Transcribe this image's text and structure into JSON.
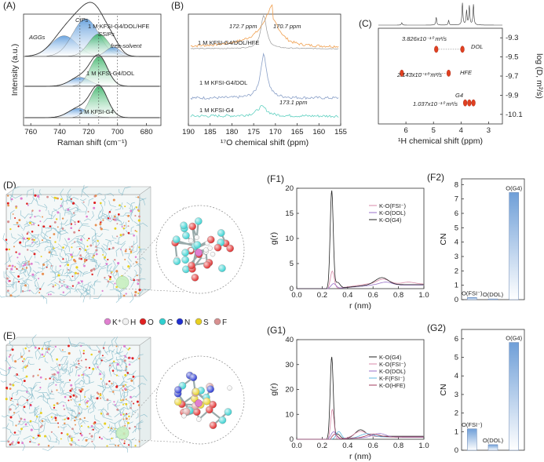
{
  "chart_data": [
    {
      "panel": "(A)",
      "type": "area",
      "xlabel": "Raman shift (cm⁻¹)",
      "ylabel": "Intensity (a.u.)",
      "xlim": [
        765,
        670
      ],
      "xticks": [
        760,
        740,
        720,
        700,
        680
      ],
      "series": [
        {
          "name": "1 M KFSI-G4/DOL/HFE",
          "components": [
            {
              "name": "AGGs",
              "center": 737,
              "height": 0.55,
              "width": 9
            },
            {
              "name": "CIPs",
              "center": 722,
              "height": 1.0,
              "width": 9
            },
            {
              "name": "SSIPs",
              "center": 713,
              "height": 0.6,
              "width": 7
            },
            {
              "name": "free-solvent",
              "center": 703,
              "height": 0.25,
              "width": 5
            }
          ]
        },
        {
          "name": "1 M KFSI-G4/DOL",
          "components": [
            {
              "name": "CIPs",
              "center": 726,
              "height": 0.3,
              "width": 7
            },
            {
              "name": "SSIPs",
              "center": 713,
              "height": 1.0,
              "width": 6
            }
          ]
        },
        {
          "name": "1 M KFSI-G4",
          "components": [
            {
              "name": "CIPs",
              "center": 727,
              "height": 0.3,
              "width": 7
            },
            {
              "name": "SSIPs",
              "center": 713,
              "height": 1.0,
              "width": 6
            }
          ]
        }
      ],
      "annotations": [
        "AGGs",
        "CIPs",
        "SSIPs",
        "free-solvent"
      ]
    },
    {
      "panel": "(B)",
      "type": "line",
      "xlabel": "¹⁷O chemical shift (ppm)",
      "xlim": [
        190,
        155
      ],
      "xticks": [
        190,
        185,
        180,
        175,
        170,
        165,
        160,
        155
      ],
      "series": [
        {
          "name": "1 M KFSI-G4/DOL/HFE",
          "peaks": [
            172.7,
            170.7
          ]
        },
        {
          "name": "1 M KFSI-G4/DOL",
          "peaks": [
            172.7
          ]
        },
        {
          "name": "1 M KFSI-G4",
          "peaks": [
            173.1
          ]
        }
      ],
      "annotations": [
        "172.7 ppm",
        "170.7 ppm",
        "173.1 ppm"
      ]
    },
    {
      "panel": "(C)",
      "type": "scatter",
      "xlabel": "¹H chemical shift (ppm)",
      "ylabel": "log (D, m²/s)",
      "xlim": [
        7,
        2.5
      ],
      "xticks": [
        6,
        5,
        4,
        3
      ],
      "ylim": [
        -9.2,
        -10.2
      ],
      "yticks": [
        "-9.3",
        "-9.5",
        "-9.7",
        "-9.9",
        "-10.1"
      ],
      "points": [
        {
          "name": "DOL",
          "diffusion": "3.826x10⁻¹⁰ m²/s",
          "shifts": [
            4.9,
            3.95
          ],
          "logD": -9.42
        },
        {
          "name": "HFE",
          "diffusion": "2.143x10⁻¹⁰ m²/s",
          "shifts": [
            6.15,
            4.45
          ],
          "logD": -9.67
        },
        {
          "name": "G4",
          "diffusion": "1.037x10⁻¹⁰ m²/s",
          "shifts": [
            3.85,
            3.7,
            3.55
          ],
          "logD": -9.98
        }
      ]
    },
    {
      "panel": "(F1)",
      "type": "line",
      "xlabel": "r (nm)",
      "ylabel": "g(r)",
      "xlim": [
        0.0,
        1.0
      ],
      "ylim": [
        0,
        20
      ],
      "xticks": [
        "0.0",
        "0.2",
        "0.4",
        "0.6",
        "0.8",
        "1.0"
      ],
      "yticks": [
        "0",
        "5",
        "10",
        "15",
        "20"
      ],
      "series": [
        {
          "name": "K-O(FSI⁻)",
          "color": "#d98aa8"
        },
        {
          "name": "K-O(DOL)",
          "color": "#9a72c8"
        },
        {
          "name": "K-O(G4)",
          "color": "#222222"
        }
      ]
    },
    {
      "panel": "(F2)",
      "type": "bar",
      "ylabel": "CN",
      "ylim": [
        0,
        8.4
      ],
      "yticks": [
        "0",
        "1",
        "2",
        "3",
        "4",
        "5",
        "6",
        "7",
        "8"
      ],
      "categories": [
        "O(FSI⁻)",
        "O(DOL)",
        "O(G4)"
      ],
      "values": [
        0.15,
        0.05,
        7.45
      ]
    },
    {
      "panel": "(G1)",
      "type": "line",
      "xlabel": "r (nm)",
      "ylabel": "g(r)",
      "xlim": [
        0.0,
        1.0
      ],
      "ylim": [
        0,
        40
      ],
      "xticks": [
        "0.0",
        "0.2",
        "0.4",
        "0.6",
        "0.8",
        "1.0"
      ],
      "yticks": [
        "0",
        "10",
        "20",
        "30",
        "40"
      ],
      "series": [
        {
          "name": "K-O(G4)",
          "color": "#222222"
        },
        {
          "name": "K-O(FSI⁻)",
          "color": "#d98aa8"
        },
        {
          "name": "K-O(DOL)",
          "color": "#9a72c8"
        },
        {
          "name": "K-F(FSI⁻)",
          "color": "#5fb8e0"
        },
        {
          "name": "K-O(HFE)",
          "color": "#a13b5c"
        }
      ]
    },
    {
      "panel": "(G2)",
      "type": "bar",
      "ylabel": "CN",
      "ylim": [
        0,
        6.5
      ],
      "yticks": [
        "0",
        "1",
        "2",
        "3",
        "4",
        "5",
        "6"
      ],
      "categories": [
        "O(FSI⁻)",
        "O(DOL)",
        "O(G4)"
      ],
      "values": [
        1.15,
        0.3,
        5.8
      ]
    }
  ],
  "panels": {
    "D": "(D)",
    "E": "(E)"
  },
  "atom_legend": [
    {
      "label": "K⁺",
      "color": "#e07fd0"
    },
    {
      "label": "H",
      "color": "#f2f2f2"
    },
    {
      "label": "O",
      "color": "#e02020"
    },
    {
      "label": "C",
      "color": "#30d0d0"
    },
    {
      "label": "N",
      "color": "#1f2fd0"
    },
    {
      "label": "S",
      "color": "#e8d020"
    },
    {
      "label": "F",
      "color": "#d89090"
    }
  ],
  "colors": {
    "fill_blue": "#7ab0e0",
    "fill_green": "#58c080",
    "line_orange": "#f0a050",
    "line_blue": "#8aa0c8",
    "line_cyan": "#60d0c0",
    "nmr_red": "#e04020"
  }
}
